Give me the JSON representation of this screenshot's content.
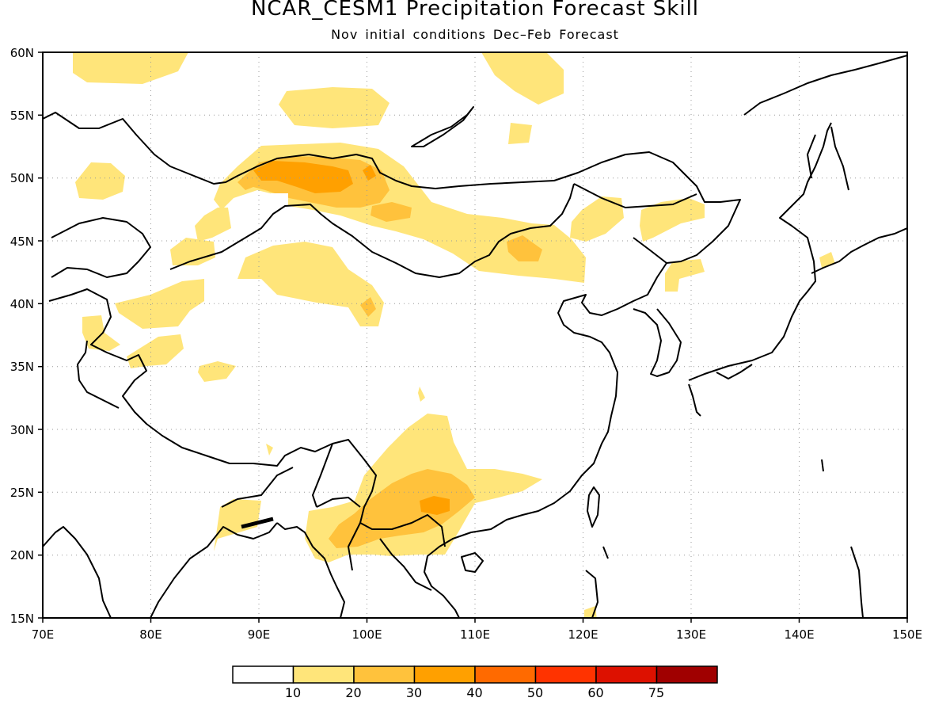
{
  "title": "NCAR_CESM1 Precipitation Forecast Skill",
  "subtitle": "Nov initial conditions  Dec–Feb Forecast",
  "axes": {
    "lon_ticks": [
      "70E",
      "80E",
      "90E",
      "100E",
      "110E",
      "120E",
      "130E",
      "140E",
      "150E"
    ],
    "lat_ticks": [
      "15N",
      "20N",
      "25N",
      "30N",
      "35N",
      "40N",
      "45N",
      "50N",
      "55N",
      "60N"
    ],
    "lon_range": [
      70,
      150
    ],
    "lat_range": [
      15,
      60
    ],
    "grid": true
  },
  "colorbar": {
    "labels": [
      "10",
      "20",
      "30",
      "40",
      "50",
      "60",
      "75"
    ],
    "colors": [
      "#ffffff",
      "#ffe57a",
      "#ffc23c",
      "#ffa000",
      "#ff6a00",
      "#ff3300",
      "#dd1100",
      "#a00000"
    ]
  }
}
